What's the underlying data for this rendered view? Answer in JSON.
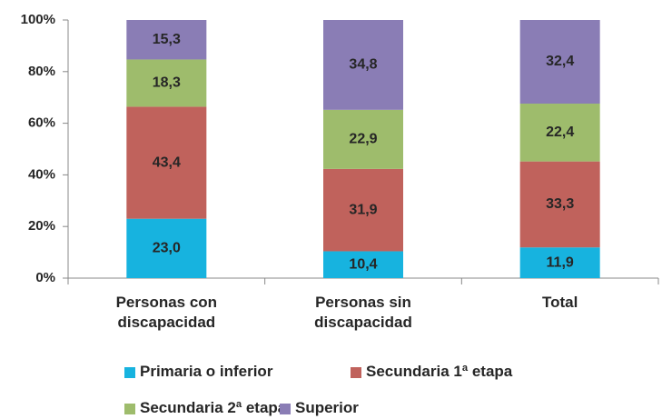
{
  "chart_data": {
    "type": "stacked_bar",
    "categories": [
      "Personas con discapacidad",
      "Personas sin discapacidad",
      "Total"
    ],
    "series": [
      {
        "name": "Primaria o inferior",
        "color": "#17b3df",
        "values": [
          23.0,
          10.4,
          11.9
        ],
        "value_labels": [
          "23,0",
          "10,4",
          "11,9"
        ]
      },
      {
        "name": "Secundaria 1ª etapa",
        "color": "#c0625c",
        "values": [
          43.4,
          31.9,
          33.3
        ],
        "value_labels": [
          "43,4",
          "31,9",
          "33,3"
        ]
      },
      {
        "name": "Secundaria 2ª etapa",
        "color": "#9ebc6c",
        "values": [
          18.3,
          22.9,
          22.4
        ],
        "value_labels": [
          "18,3",
          "22,9",
          "22,4"
        ]
      },
      {
        "name": "Superior",
        "color": "#8a7db5",
        "values": [
          15.3,
          34.8,
          32.4
        ],
        "value_labels": [
          "15,3",
          "34,8",
          "32,4"
        ]
      }
    ],
    "ylim": [
      0,
      100
    ],
    "yticks": [
      {
        "value": 0,
        "label": "0%"
      },
      {
        "value": 20,
        "label": "20%"
      },
      {
        "value": 40,
        "label": "40%"
      },
      {
        "value": 60,
        "label": "60%"
      },
      {
        "value": 80,
        "label": "80%"
      },
      {
        "value": 100,
        "label": "100%"
      }
    ],
    "grid": false
  }
}
